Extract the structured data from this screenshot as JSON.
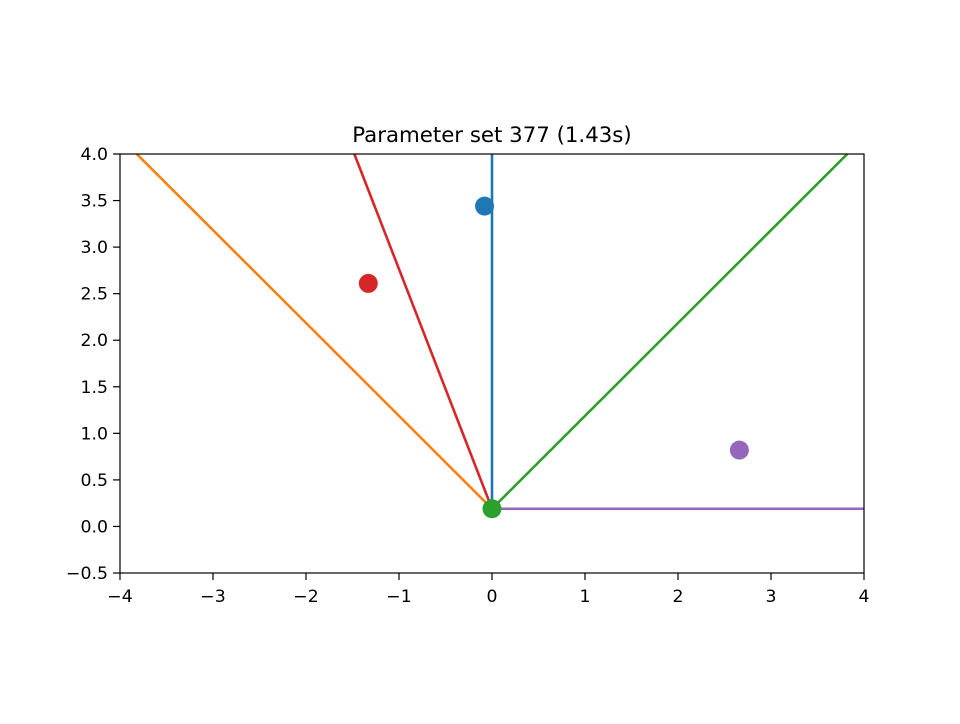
{
  "chart_data": {
    "type": "line",
    "title": "Parameter set 377 (1.43s)",
    "xlabel": "",
    "ylabel": "",
    "xlim": [
      -4,
      4
    ],
    "ylim": [
      -0.5,
      4.0
    ],
    "grid": false,
    "legend": "none",
    "xticks": [
      -4,
      -3,
      -2,
      -1,
      0,
      1,
      2,
      3,
      4
    ],
    "xtick_labels": [
      "−4",
      "−3",
      "−2",
      "−1",
      "0",
      "1",
      "2",
      "3",
      "4"
    ],
    "yticks": [
      -0.5,
      0.0,
      0.5,
      1.0,
      1.5,
      2.0,
      2.5,
      3.0,
      3.5,
      4.0
    ],
    "ytick_labels": [
      "−0.5",
      "0.0",
      "0.5",
      "1.0",
      "1.5",
      "2.0",
      "2.5",
      "3.0",
      "3.5",
      "4.0"
    ],
    "series": [
      {
        "color": "#1f77b4",
        "line": [
          [
            0.0,
            0.19
          ],
          [
            0.0,
            4.0
          ]
        ],
        "point": [
          -0.08,
          3.44
        ]
      },
      {
        "color": "#ff7f0e",
        "line": [
          [
            0.0,
            0.19
          ],
          [
            -3.82,
            4.0
          ]
        ],
        "point": null
      },
      {
        "color": "#2ca02c",
        "line": [
          [
            0.0,
            0.19
          ],
          [
            3.82,
            4.0
          ]
        ],
        "point": [
          0.0,
          0.19
        ]
      },
      {
        "color": "#d62728",
        "line": [
          [
            0.0,
            0.19
          ],
          [
            -1.48,
            4.0
          ]
        ],
        "point": [
          -1.33,
          2.61
        ]
      },
      {
        "color": "#9467bd",
        "line": [
          [
            0.0,
            0.19
          ],
          [
            4.0,
            0.19
          ]
        ],
        "point": [
          2.66,
          0.82
        ]
      }
    ]
  }
}
